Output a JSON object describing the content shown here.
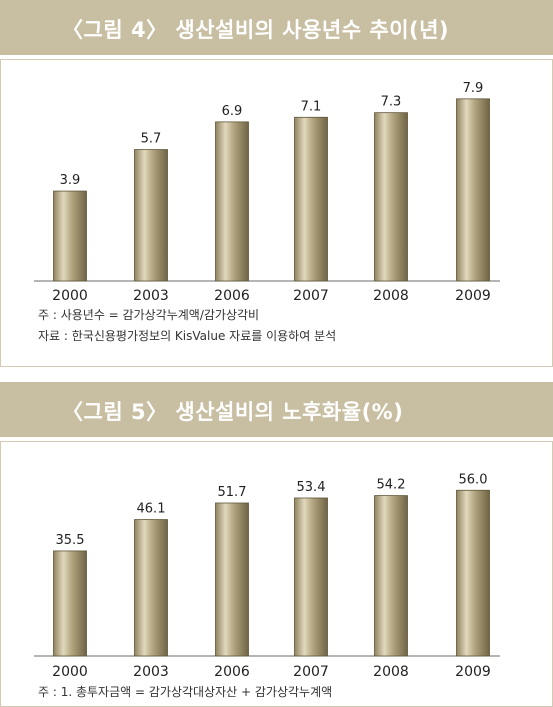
{
  "figures": [
    {
      "title": "〈그림 4〉 생산설비의 사용년수 추이(년)",
      "notes": [
        "주 : 사용년수 = 감가상각누계액/감가상각비",
        "자료 : 한국신용평가정보의 KisValue 자료를 이용하여 분석"
      ]
    },
    {
      "title": "〈그림 5〉 생산설비의 노후화율(%)",
      "notes": [
        "주 : 1. 총투자금액 = 감가상각대상자산 + 감가상각누계액"
      ]
    }
  ],
  "chart_data": [
    {
      "type": "bar",
      "title": "〈그림 4〉 생산설비의 사용년수 추이(년)",
      "categories": [
        "2000",
        "2003",
        "2006",
        "2007",
        "2008",
        "2009"
      ],
      "values": [
        3.9,
        5.7,
        6.9,
        7.1,
        7.3,
        7.9
      ],
      "value_labels": [
        "3.9",
        "5.7",
        "6.9",
        "7.1",
        "7.3",
        "7.9"
      ],
      "ylim": [
        0,
        8.5
      ],
      "grid": false,
      "bar_color": "#b2a57f"
    },
    {
      "type": "bar",
      "title": "〈그림 5〉 생산설비의 노후화율(%)",
      "categories": [
        "2000",
        "2003",
        "2006",
        "2007",
        "2008",
        "2009"
      ],
      "values": [
        35.5,
        46.1,
        51.7,
        53.4,
        54.2,
        56.0
      ],
      "value_labels": [
        "35.5",
        "46.1",
        "51.7",
        "53.4",
        "54.2",
        "56.0"
      ],
      "ylim": [
        0,
        61.5
      ],
      "grid": false,
      "bar_color": "#b2a57f"
    }
  ]
}
